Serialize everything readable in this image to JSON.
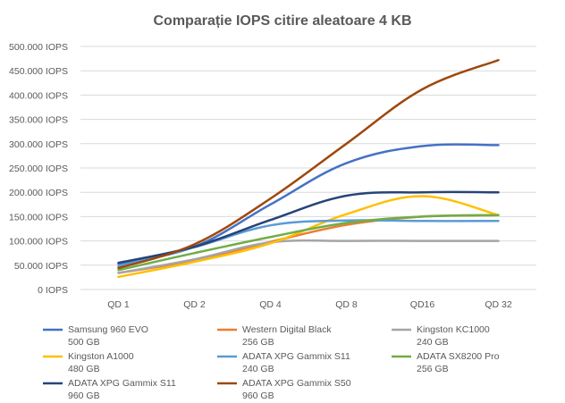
{
  "chart_data": {
    "type": "line",
    "title": "Comparație IOPS citire aleatoare 4 KB",
    "xlabel": "",
    "ylabel": "",
    "categories": [
      "QD 1",
      "QD 2",
      "QD 4",
      "QD 8",
      "QD16",
      "QD 32"
    ],
    "ylim": [
      0,
      500000
    ],
    "yticks": [
      "0 IOPS",
      "50.000 IOPS",
      "100.000 IOPS",
      "150.000 IOPS",
      "200.000 IOPS",
      "250.000 IOPS",
      "300.000 IOPS",
      "350.000 IOPS",
      "400.000 IOPS",
      "450.000 IOPS",
      "500.000 IOPS"
    ],
    "ytick_values": [
      0,
      50000,
      100000,
      150000,
      200000,
      250000,
      300000,
      350000,
      400000,
      450000,
      500000
    ],
    "grid": true,
    "legend_position": "bottom",
    "series": [
      {
        "name": "Samsung 960 EVO",
        "name2": "500 GB",
        "color": "#4472c4",
        "values": [
          53000,
          88000,
          175000,
          260000,
          295000,
          297000
        ]
      },
      {
        "name": "Western Digital Black",
        "name2": "256 GB",
        "color": "#ed7d31",
        "values": [
          34000,
          60000,
          98000,
          133000,
          150000,
          153000
        ]
      },
      {
        "name": "Kingston KC1000",
        "name2": "240 GB",
        "color": "#a5a5a5",
        "values": [
          34000,
          62000,
          97000,
          100000,
          100000,
          100000
        ]
      },
      {
        "name": "Kingston A1000",
        "name2": "480 GB",
        "color": "#ffc000",
        "values": [
          26000,
          57000,
          95000,
          155000,
          192000,
          153000
        ]
      },
      {
        "name": "ADATA XPG Gammix S11",
        "name2": "240 GB",
        "color": "#5b9bd5",
        "values": [
          48000,
          87000,
          132000,
          142000,
          141000,
          141000
        ]
      },
      {
        "name": "ADATA SX8200 Pro",
        "name2": "256 GB",
        "color": "#70ad47",
        "values": [
          40000,
          75000,
          108000,
          137000,
          150000,
          153000
        ]
      },
      {
        "name": "ADATA XPG Gammix S11",
        "name2": "960 GB",
        "color": "#264478",
        "values": [
          55000,
          88000,
          143000,
          193000,
          200000,
          200000
        ]
      },
      {
        "name": "ADATA XPG Gammix S50",
        "name2": "960 GB",
        "color": "#9e480e",
        "values": [
          44000,
          93000,
          187000,
          300000,
          412000,
          472000
        ]
      }
    ]
  }
}
